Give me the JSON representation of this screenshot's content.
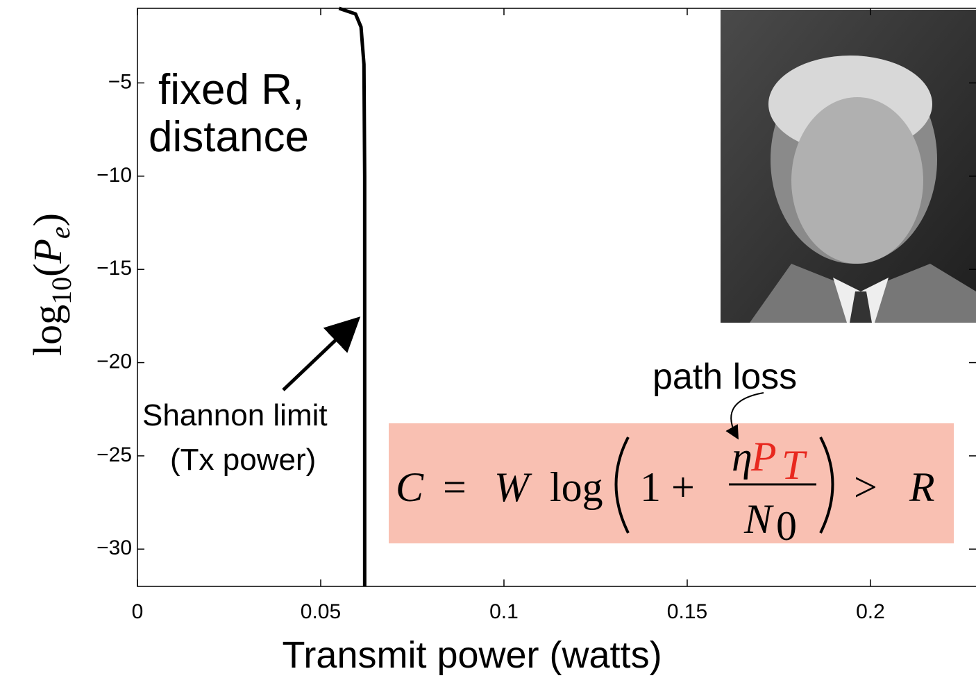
{
  "chart_data": {
    "type": "line",
    "x_label": "Transmit power (watts)",
    "y_label_parts": [
      "log",
      "10",
      "(",
      "P",
      "e",
      ")"
    ],
    "x": [
      0.055,
      0.0595,
      0.061,
      0.0618,
      0.062,
      0.062
    ],
    "series": [
      {
        "color": "#000000",
        "values": [
          -1,
          -1.3,
          -2,
          -4,
          -10,
          -32
        ]
      }
    ],
    "xlim": [
      0,
      0.228
    ],
    "ylim": [
      -32,
      -1
    ],
    "xticks": [
      0,
      0.05,
      0.1,
      0.15,
      0.2
    ],
    "yticks": [
      {
        "value": -5,
        "label": "−5"
      },
      {
        "value": -10,
        "label": "−10"
      },
      {
        "value": -15,
        "label": "−15"
      },
      {
        "value": -20,
        "label": "−20"
      },
      {
        "value": -25,
        "label": "−25"
      },
      {
        "value": -30,
        "label": "−30"
      }
    ],
    "grid": false,
    "annotations": {
      "condition": [
        "fixed R,",
        "distance"
      ],
      "limit": [
        "Shannon limit",
        "(Tx power)"
      ],
      "path_loss": "path loss",
      "formula": [
        "C",
        "=",
        "W",
        "log",
        "1 +",
        "η",
        "P",
        "T",
        "N",
        "0",
        ">",
        "R"
      ]
    }
  }
}
